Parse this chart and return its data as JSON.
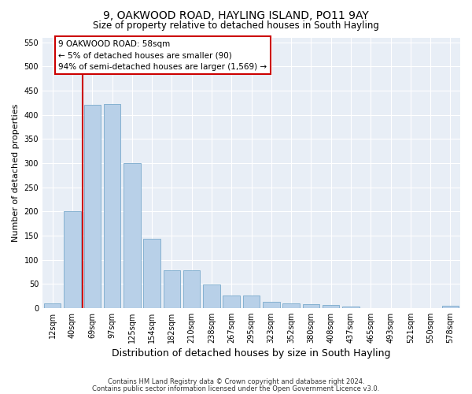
{
  "title1": "9, OAKWOOD ROAD, HAYLING ISLAND, PO11 9AY",
  "title2": "Size of property relative to detached houses in South Hayling",
  "xlabel": "Distribution of detached houses by size in South Hayling",
  "ylabel": "Number of detached properties",
  "categories": [
    "12sqm",
    "40sqm",
    "69sqm",
    "97sqm",
    "125sqm",
    "154sqm",
    "182sqm",
    "210sqm",
    "238sqm",
    "267sqm",
    "295sqm",
    "323sqm",
    "352sqm",
    "380sqm",
    "408sqm",
    "437sqm",
    "465sqm",
    "493sqm",
    "521sqm",
    "550sqm",
    "578sqm"
  ],
  "values": [
    10,
    200,
    420,
    422,
    300,
    143,
    78,
    78,
    48,
    25,
    25,
    12,
    10,
    8,
    6,
    3,
    0,
    0,
    0,
    0,
    4
  ],
  "bar_color": "#b8d0e8",
  "bar_edge_color": "#7aaacc",
  "vline_x": 1.5,
  "vline_color": "#cc0000",
  "ylim": [
    0,
    560
  ],
  "yticks": [
    0,
    50,
    100,
    150,
    200,
    250,
    300,
    350,
    400,
    450,
    500,
    550
  ],
  "annotation_text": "9 OAKWOOD ROAD: 58sqm\n← 5% of detached houses are smaller (90)\n94% of semi-detached houses are larger (1,569) →",
  "annotation_box_color": "#ffffff",
  "annotation_box_edge": "#cc0000",
  "footer1": "Contains HM Land Registry data © Crown copyright and database right 2024.",
  "footer2": "Contains public sector information licensed under the Open Government Licence v3.0.",
  "background_color": "#e8eef6",
  "grid_color": "#ffffff",
  "title1_fontsize": 10,
  "title2_fontsize": 8.5,
  "xlabel_fontsize": 9,
  "ylabel_fontsize": 8,
  "tick_fontsize": 7,
  "annot_fontsize": 7.5,
  "footer_fontsize": 6
}
